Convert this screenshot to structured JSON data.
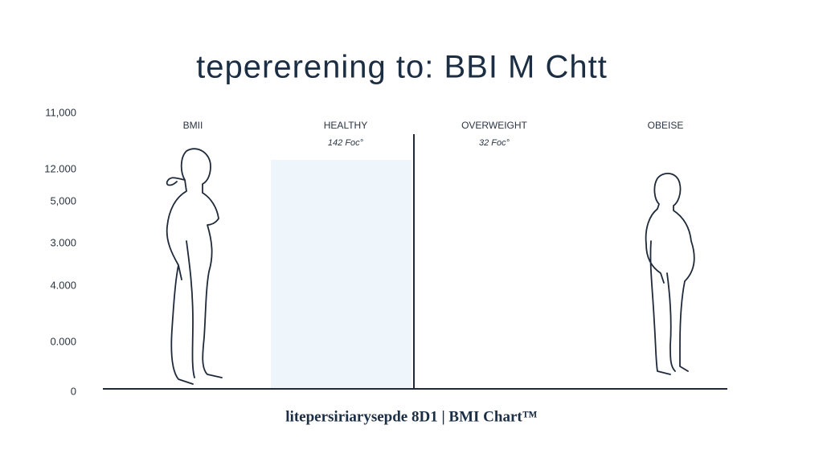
{
  "title": "tepererening to: BBI M Chtt",
  "y_labels": [
    "11,000",
    "12.000",
    "5,000",
    "3.000",
    "4.000",
    "0.000",
    "0"
  ],
  "columns": [
    {
      "label": "BMII"
    },
    {
      "label": "HEALTHY",
      "sublabel": "142 Foc°"
    },
    {
      "label": "OVERWEIGHT",
      "sublabel": "32 Foc°"
    },
    {
      "label": "OBEISE"
    }
  ],
  "footer": "litepersiriarysepde 8D1 | BMI Chart™"
}
